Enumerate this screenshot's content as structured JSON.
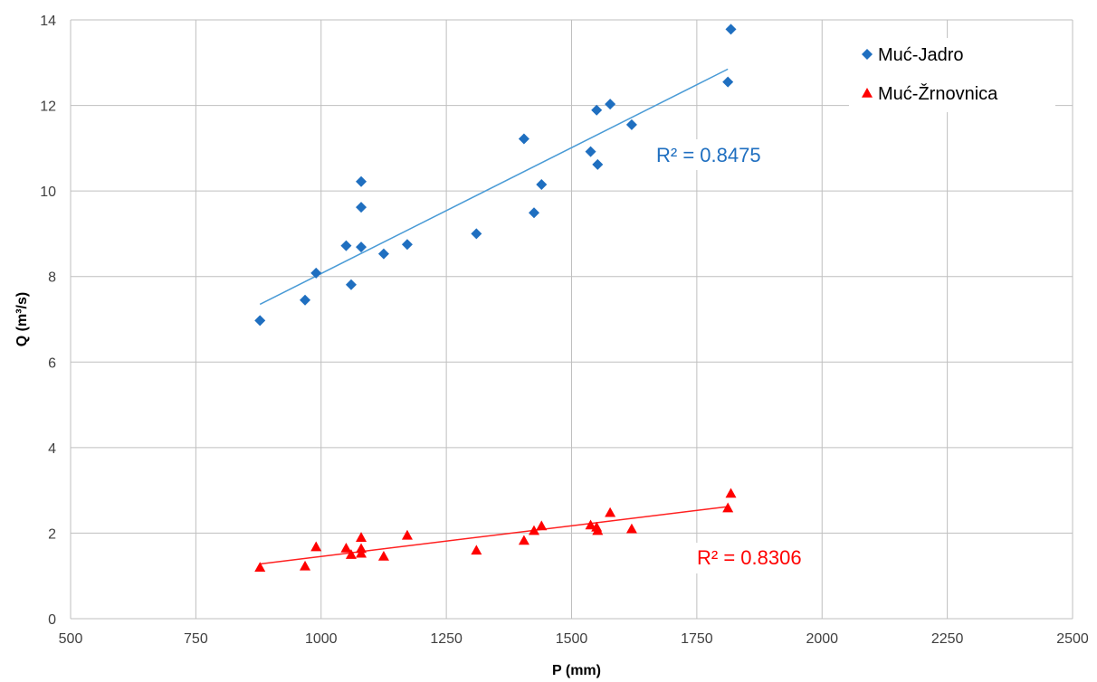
{
  "chart_data": {
    "type": "scatter",
    "xlabel": "P (mm)",
    "ylabel": "Q (m³/s)",
    "xlim": [
      500,
      2500
    ],
    "ylim": [
      0,
      14
    ],
    "xticks": [
      500,
      750,
      1000,
      1250,
      1500,
      1750,
      2000,
      2250,
      2500
    ],
    "yticks": [
      0,
      2,
      4,
      6,
      8,
      10,
      12,
      14
    ],
    "xtick_labels": [
      "500",
      "750",
      "1000",
      "1250",
      "1500",
      "1750",
      "2000",
      "2250",
      "2500"
    ],
    "ytick_labels": [
      "0",
      "2",
      "4",
      "6",
      "8",
      "10",
      "12",
      "14"
    ],
    "grid": true,
    "legend_position": "top-right",
    "series": [
      {
        "name": "Muć-Jadro",
        "color": "#1F6FC0",
        "trend_color": "#4A9BD6",
        "marker": "diamond",
        "r2_label": "R² = 0.8475",
        "trendline": [
          [
            878,
            7.35
          ],
          [
            1812,
            12.85
          ]
        ],
        "points": [
          [
            878,
            6.97
          ],
          [
            968,
            7.45
          ],
          [
            990,
            8.08
          ],
          [
            1050,
            8.72
          ],
          [
            1060,
            7.81
          ],
          [
            1080,
            10.22
          ],
          [
            1080,
            9.62
          ],
          [
            1080,
            8.69
          ],
          [
            1125,
            8.53
          ],
          [
            1172,
            8.75
          ],
          [
            1310,
            9.0
          ],
          [
            1405,
            11.22
          ],
          [
            1425,
            9.49
          ],
          [
            1440,
            10.15
          ],
          [
            1538,
            10.92
          ],
          [
            1550,
            11.89
          ],
          [
            1552,
            10.62
          ],
          [
            1577,
            12.03
          ],
          [
            1620,
            11.55
          ],
          [
            1812,
            12.55
          ],
          [
            1818,
            13.78
          ]
        ]
      },
      {
        "name": "Muć-Žrnovnica",
        "color": "#FF0000",
        "trend_color": "#FF2020",
        "marker": "triangle",
        "r2_label": "R² = 0.8306",
        "trendline": [
          [
            878,
            1.28
          ],
          [
            1812,
            2.62
          ]
        ],
        "points": [
          [
            878,
            1.2
          ],
          [
            968,
            1.23
          ],
          [
            990,
            1.68
          ],
          [
            1050,
            1.65
          ],
          [
            1060,
            1.5
          ],
          [
            1080,
            1.9
          ],
          [
            1080,
            1.64
          ],
          [
            1080,
            1.53
          ],
          [
            1125,
            1.46
          ],
          [
            1172,
            1.95
          ],
          [
            1310,
            1.6
          ],
          [
            1405,
            1.83
          ],
          [
            1425,
            2.06
          ],
          [
            1440,
            2.17
          ],
          [
            1538,
            2.19
          ],
          [
            1550,
            2.14
          ],
          [
            1552,
            2.06
          ],
          [
            1577,
            2.48
          ],
          [
            1620,
            2.1
          ],
          [
            1812,
            2.59
          ],
          [
            1818,
            2.93
          ]
        ]
      }
    ]
  }
}
